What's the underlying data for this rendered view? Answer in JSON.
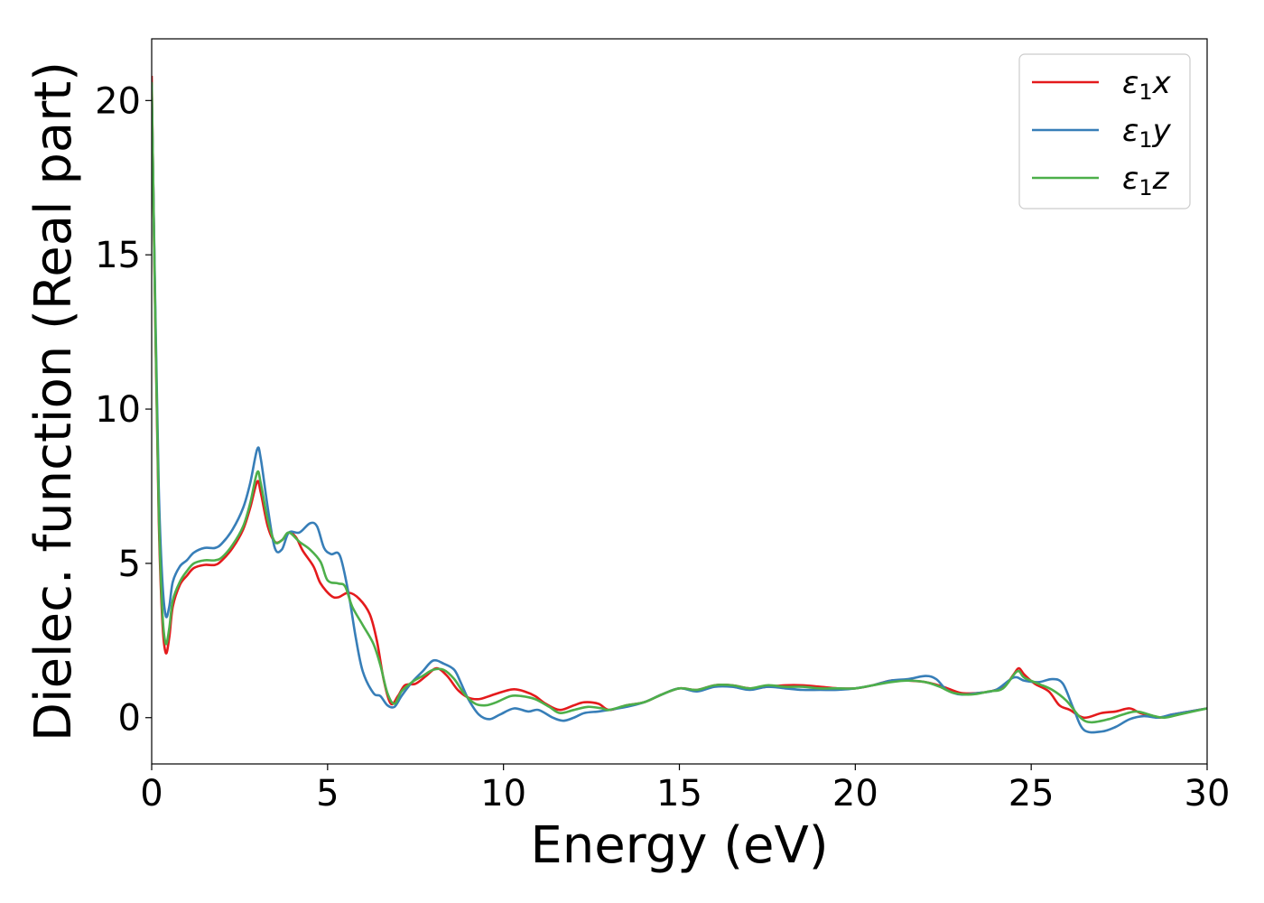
{
  "chart_data": {
    "type": "line",
    "title": "",
    "xlabel": "Energy (eV)",
    "ylabel": "Dielec. function (Real part)",
    "xlim": [
      0,
      30
    ],
    "ylim": [
      -1.5,
      22
    ],
    "xticks": [
      0,
      5,
      10,
      15,
      20,
      25,
      30
    ],
    "yticks": [
      0,
      5,
      10,
      15,
      20
    ],
    "grid": false,
    "legend_position": "top-right",
    "series": [
      {
        "name": "ε₁x",
        "legend_base": "ε",
        "legend_sub": "1",
        "legend_var": "x",
        "color": "#e41a1c",
        "points": [
          [
            0.0,
            20.8
          ],
          [
            0.1,
            13.0
          ],
          [
            0.2,
            6.5
          ],
          [
            0.3,
            3.2
          ],
          [
            0.4,
            2.1
          ],
          [
            0.5,
            2.6
          ],
          [
            0.6,
            3.6
          ],
          [
            0.8,
            4.3
          ],
          [
            1.0,
            4.6
          ],
          [
            1.2,
            4.85
          ],
          [
            1.5,
            4.95
          ],
          [
            1.8,
            4.95
          ],
          [
            2.0,
            5.1
          ],
          [
            2.3,
            5.5
          ],
          [
            2.6,
            6.1
          ],
          [
            2.8,
            6.8
          ],
          [
            3.0,
            7.65
          ],
          [
            3.1,
            7.3
          ],
          [
            3.3,
            6.2
          ],
          [
            3.5,
            5.7
          ],
          [
            3.7,
            5.75
          ],
          [
            3.9,
            6.0
          ],
          [
            4.1,
            5.85
          ],
          [
            4.3,
            5.4
          ],
          [
            4.6,
            4.9
          ],
          [
            4.8,
            4.35
          ],
          [
            5.1,
            3.95
          ],
          [
            5.3,
            3.9
          ],
          [
            5.6,
            4.05
          ],
          [
            5.9,
            3.85
          ],
          [
            6.2,
            3.35
          ],
          [
            6.4,
            2.5
          ],
          [
            6.6,
            1.2
          ],
          [
            6.8,
            0.45
          ],
          [
            7.0,
            0.7
          ],
          [
            7.2,
            1.05
          ],
          [
            7.5,
            1.1
          ],
          [
            7.8,
            1.35
          ],
          [
            8.1,
            1.6
          ],
          [
            8.4,
            1.35
          ],
          [
            8.7,
            0.9
          ],
          [
            9.0,
            0.65
          ],
          [
            9.3,
            0.6
          ],
          [
            9.6,
            0.7
          ],
          [
            10.0,
            0.85
          ],
          [
            10.3,
            0.92
          ],
          [
            10.6,
            0.85
          ],
          [
            10.9,
            0.7
          ],
          [
            11.2,
            0.45
          ],
          [
            11.6,
            0.25
          ],
          [
            12.0,
            0.4
          ],
          [
            12.3,
            0.5
          ],
          [
            12.7,
            0.45
          ],
          [
            13.0,
            0.25
          ],
          [
            13.5,
            0.4
          ],
          [
            14.0,
            0.5
          ],
          [
            14.5,
            0.75
          ],
          [
            15.0,
            0.95
          ],
          [
            15.5,
            0.9
          ],
          [
            16.0,
            1.05
          ],
          [
            16.5,
            1.05
          ],
          [
            17.0,
            0.95
          ],
          [
            17.5,
            1.0
          ],
          [
            18.0,
            1.05
          ],
          [
            18.5,
            1.05
          ],
          [
            19.0,
            1.0
          ],
          [
            19.5,
            0.95
          ],
          [
            20.0,
            0.95
          ],
          [
            20.5,
            1.05
          ],
          [
            21.0,
            1.2
          ],
          [
            21.5,
            1.2
          ],
          [
            22.0,
            1.15
          ],
          [
            22.5,
            1.0
          ],
          [
            23.0,
            0.8
          ],
          [
            23.5,
            0.8
          ],
          [
            24.0,
            0.9
          ],
          [
            24.3,
            1.1
          ],
          [
            24.5,
            1.4
          ],
          [
            24.65,
            1.6
          ],
          [
            24.8,
            1.4
          ],
          [
            25.1,
            1.1
          ],
          [
            25.5,
            0.85
          ],
          [
            25.8,
            0.4
          ],
          [
            26.1,
            0.25
          ],
          [
            26.5,
            0.0
          ],
          [
            27.0,
            0.15
          ],
          [
            27.4,
            0.2
          ],
          [
            27.8,
            0.3
          ],
          [
            28.1,
            0.15
          ],
          [
            28.6,
            0.0
          ],
          [
            29.0,
            0.1
          ],
          [
            29.5,
            0.2
          ],
          [
            30.0,
            0.3
          ]
        ]
      },
      {
        "name": "ε₁y",
        "legend_base": "ε",
        "legend_sub": "1",
        "legend_var": "y",
        "color": "#377eb8",
        "points": [
          [
            0.0,
            20.5
          ],
          [
            0.1,
            13.5
          ],
          [
            0.2,
            7.5
          ],
          [
            0.3,
            4.5
          ],
          [
            0.4,
            3.3
          ],
          [
            0.5,
            3.6
          ],
          [
            0.6,
            4.4
          ],
          [
            0.8,
            4.9
          ],
          [
            1.0,
            5.1
          ],
          [
            1.2,
            5.35
          ],
          [
            1.5,
            5.5
          ],
          [
            1.8,
            5.5
          ],
          [
            2.0,
            5.65
          ],
          [
            2.3,
            6.1
          ],
          [
            2.6,
            6.8
          ],
          [
            2.8,
            7.6
          ],
          [
            3.0,
            8.7
          ],
          [
            3.1,
            8.4
          ],
          [
            3.3,
            6.8
          ],
          [
            3.5,
            5.5
          ],
          [
            3.7,
            5.45
          ],
          [
            3.9,
            6.0
          ],
          [
            4.2,
            6.0
          ],
          [
            4.5,
            6.3
          ],
          [
            4.7,
            6.2
          ],
          [
            4.9,
            5.5
          ],
          [
            5.1,
            5.3
          ],
          [
            5.35,
            5.25
          ],
          [
            5.6,
            4.0
          ],
          [
            5.8,
            2.6
          ],
          [
            6.0,
            1.5
          ],
          [
            6.3,
            0.8
          ],
          [
            6.5,
            0.7
          ],
          [
            6.7,
            0.4
          ],
          [
            6.9,
            0.35
          ],
          [
            7.1,
            0.7
          ],
          [
            7.4,
            1.15
          ],
          [
            7.7,
            1.5
          ],
          [
            8.0,
            1.85
          ],
          [
            8.3,
            1.75
          ],
          [
            8.6,
            1.55
          ],
          [
            8.8,
            1.1
          ],
          [
            9.0,
            0.6
          ],
          [
            9.3,
            0.1
          ],
          [
            9.6,
            -0.05
          ],
          [
            9.9,
            0.1
          ],
          [
            10.3,
            0.3
          ],
          [
            10.7,
            0.2
          ],
          [
            11.0,
            0.25
          ],
          [
            11.4,
            0.0
          ],
          [
            11.7,
            -0.1
          ],
          [
            12.0,
            0.0
          ],
          [
            12.3,
            0.15
          ],
          [
            12.7,
            0.2
          ],
          [
            13.0,
            0.25
          ],
          [
            13.5,
            0.35
          ],
          [
            14.0,
            0.5
          ],
          [
            14.5,
            0.75
          ],
          [
            15.0,
            0.95
          ],
          [
            15.5,
            0.85
          ],
          [
            16.0,
            1.0
          ],
          [
            16.5,
            1.0
          ],
          [
            17.0,
            0.9
          ],
          [
            17.5,
            1.0
          ],
          [
            18.0,
            0.95
          ],
          [
            18.5,
            0.9
          ],
          [
            19.0,
            0.9
          ],
          [
            19.5,
            0.9
          ],
          [
            20.0,
            0.95
          ],
          [
            20.5,
            1.05
          ],
          [
            21.0,
            1.2
          ],
          [
            21.5,
            1.25
          ],
          [
            22.0,
            1.35
          ],
          [
            22.3,
            1.25
          ],
          [
            22.6,
            0.9
          ],
          [
            23.0,
            0.75
          ],
          [
            23.5,
            0.8
          ],
          [
            24.0,
            0.9
          ],
          [
            24.5,
            1.3
          ],
          [
            24.8,
            1.2
          ],
          [
            25.2,
            1.15
          ],
          [
            25.6,
            1.25
          ],
          [
            25.9,
            1.1
          ],
          [
            26.2,
            0.3
          ],
          [
            26.5,
            -0.4
          ],
          [
            27.0,
            -0.45
          ],
          [
            27.4,
            -0.3
          ],
          [
            27.8,
            -0.05
          ],
          [
            28.2,
            0.05
          ],
          [
            28.6,
            0.0
          ],
          [
            29.0,
            0.1
          ],
          [
            29.5,
            0.2
          ],
          [
            30.0,
            0.3
          ]
        ]
      },
      {
        "name": "ε₁z",
        "legend_base": "ε",
        "legend_sub": "1",
        "legend_var": "z",
        "color": "#4daf4a",
        "points": [
          [
            0.0,
            20.6
          ],
          [
            0.1,
            13.2
          ],
          [
            0.2,
            6.8
          ],
          [
            0.3,
            3.5
          ],
          [
            0.4,
            2.4
          ],
          [
            0.5,
            2.9
          ],
          [
            0.6,
            3.8
          ],
          [
            0.8,
            4.4
          ],
          [
            1.0,
            4.75
          ],
          [
            1.2,
            5.0
          ],
          [
            1.5,
            5.1
          ],
          [
            1.8,
            5.1
          ],
          [
            2.0,
            5.2
          ],
          [
            2.3,
            5.6
          ],
          [
            2.6,
            6.2
          ],
          [
            2.8,
            6.95
          ],
          [
            3.0,
            7.95
          ],
          [
            3.1,
            7.6
          ],
          [
            3.3,
            6.4
          ],
          [
            3.5,
            5.7
          ],
          [
            3.7,
            5.75
          ],
          [
            3.9,
            6.0
          ],
          [
            4.2,
            5.7
          ],
          [
            4.5,
            5.45
          ],
          [
            4.8,
            5.05
          ],
          [
            5.0,
            4.45
          ],
          [
            5.3,
            4.35
          ],
          [
            5.5,
            4.25
          ],
          [
            5.7,
            3.6
          ],
          [
            6.0,
            3.0
          ],
          [
            6.3,
            2.4
          ],
          [
            6.5,
            1.7
          ],
          [
            6.7,
            0.8
          ],
          [
            6.9,
            0.45
          ],
          [
            7.1,
            0.85
          ],
          [
            7.4,
            1.15
          ],
          [
            7.7,
            1.35
          ],
          [
            8.0,
            1.55
          ],
          [
            8.3,
            1.55
          ],
          [
            8.6,
            1.25
          ],
          [
            8.9,
            0.75
          ],
          [
            9.2,
            0.45
          ],
          [
            9.5,
            0.4
          ],
          [
            9.8,
            0.5
          ],
          [
            10.2,
            0.7
          ],
          [
            10.5,
            0.7
          ],
          [
            10.9,
            0.6
          ],
          [
            11.3,
            0.35
          ],
          [
            11.6,
            0.15
          ],
          [
            12.0,
            0.25
          ],
          [
            12.4,
            0.35
          ],
          [
            12.8,
            0.3
          ],
          [
            13.0,
            0.25
          ],
          [
            13.5,
            0.4
          ],
          [
            14.0,
            0.5
          ],
          [
            14.5,
            0.75
          ],
          [
            15.0,
            0.95
          ],
          [
            15.5,
            0.9
          ],
          [
            16.0,
            1.05
          ],
          [
            16.5,
            1.05
          ],
          [
            17.0,
            0.95
          ],
          [
            17.5,
            1.05
          ],
          [
            18.0,
            1.0
          ],
          [
            18.5,
            1.0
          ],
          [
            19.0,
            0.95
          ],
          [
            19.5,
            0.95
          ],
          [
            20.0,
            0.95
          ],
          [
            20.5,
            1.05
          ],
          [
            21.0,
            1.15
          ],
          [
            21.5,
            1.2
          ],
          [
            22.0,
            1.15
          ],
          [
            22.4,
            1.0
          ],
          [
            22.8,
            0.8
          ],
          [
            23.3,
            0.75
          ],
          [
            23.8,
            0.85
          ],
          [
            24.2,
            0.95
          ],
          [
            24.6,
            1.5
          ],
          [
            24.8,
            1.3
          ],
          [
            25.2,
            1.1
          ],
          [
            25.6,
            0.9
          ],
          [
            26.0,
            0.55
          ],
          [
            26.4,
            0.0
          ],
          [
            26.7,
            -0.15
          ],
          [
            27.2,
            -0.05
          ],
          [
            27.6,
            0.1
          ],
          [
            28.0,
            0.2
          ],
          [
            28.5,
            0.05
          ],
          [
            28.8,
            0.0
          ],
          [
            29.2,
            0.1
          ],
          [
            29.6,
            0.2
          ],
          [
            30.0,
            0.3
          ]
        ]
      }
    ]
  }
}
